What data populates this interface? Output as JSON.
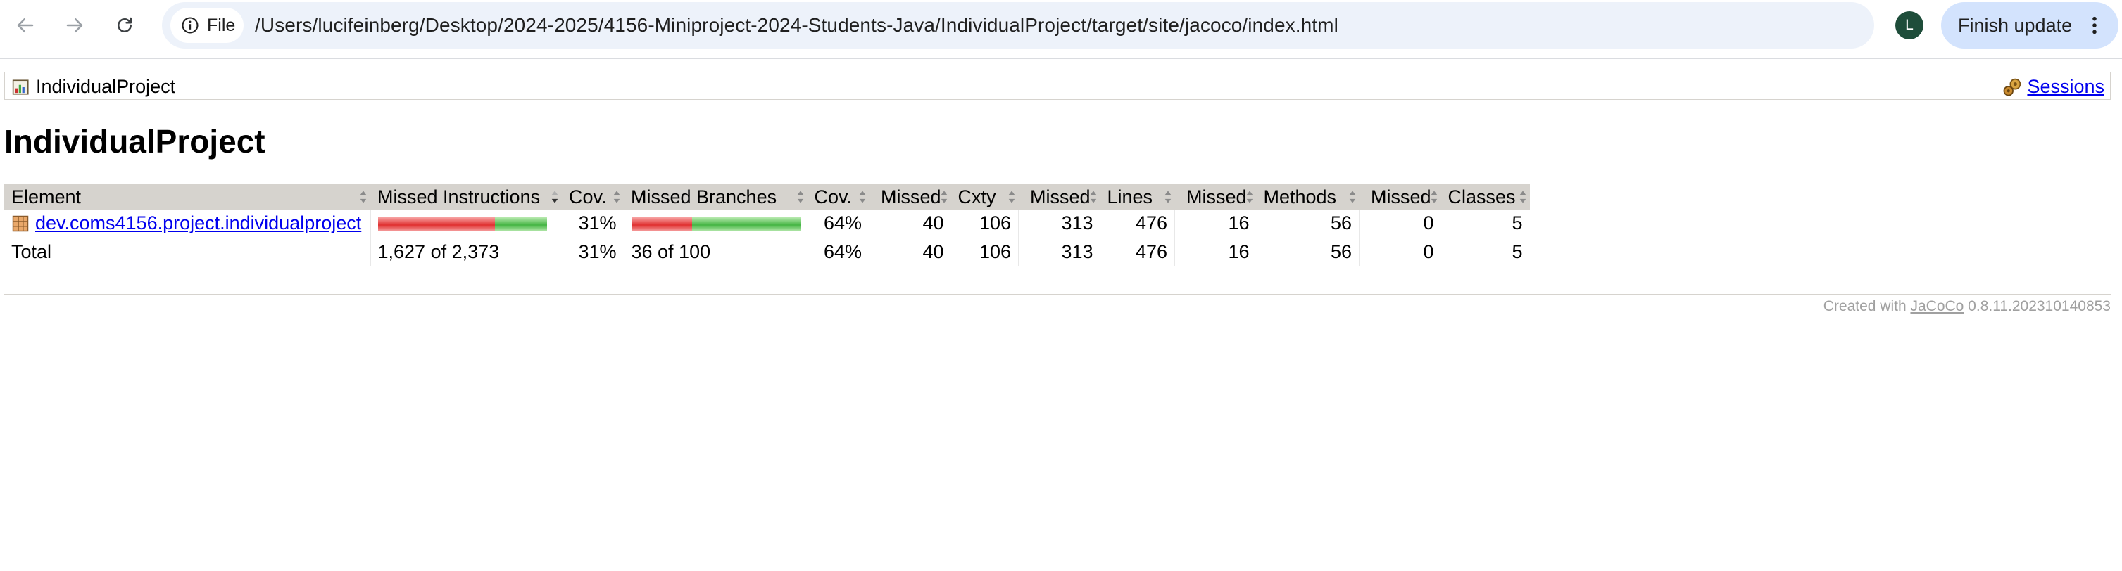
{
  "browser": {
    "scheme_chip_label": "File",
    "url": "/Users/lucifeinberg/Desktop/2024-2025/4156-Miniproject-2024-Students-Java/IndividualProject/target/site/jacoco/index.html",
    "avatar_initial": "L",
    "finish_update_label": "Finish update"
  },
  "breadcrumb": {
    "element_label": "IndividualProject",
    "sessions_label": "Sessions"
  },
  "page": {
    "title": "IndividualProject"
  },
  "table": {
    "headers": [
      "Element",
      "Missed Instructions",
      "Cov.",
      "Missed Branches",
      "Cov.",
      "Missed",
      "Cxty",
      "Missed",
      "Lines",
      "Missed",
      "Methods",
      "Missed",
      "Classes"
    ],
    "active_sort_column": "Missed Instructions",
    "rows": [
      {
        "element": "dev.coms4156.project.individualproject",
        "instructions_missed_fraction": 0.69,
        "instructions_cov": "31%",
        "branches_missed_fraction": 0.36,
        "branches_cov": "64%",
        "cxty_missed": "40",
        "cxty": "106",
        "lines_missed": "313",
        "lines": "476",
        "methods_missed": "16",
        "methods": "56",
        "classes_missed": "0",
        "classes": "5"
      }
    ],
    "total": {
      "label": "Total",
      "instructions": "1,627 of 2,373",
      "instructions_cov": "31%",
      "branches": "36 of 100",
      "branches_cov": "64%",
      "cxty_missed": "40",
      "cxty": "106",
      "lines_missed": "313",
      "lines": "476",
      "methods_missed": "16",
      "methods": "56",
      "classes_missed": "0",
      "classes": "5"
    }
  },
  "footer": {
    "prefix": "Created with ",
    "link_text": "JaCoCo",
    "version": " 0.8.11.202310140853"
  },
  "colors": {
    "header_bg": "#d6d3ce",
    "link": "#0000ee",
    "bar_missed": "#e03030",
    "bar_covered": "#44b544",
    "finish_update_bg": "#d3e3fd",
    "avatar_bg": "#1e4d3a"
  }
}
